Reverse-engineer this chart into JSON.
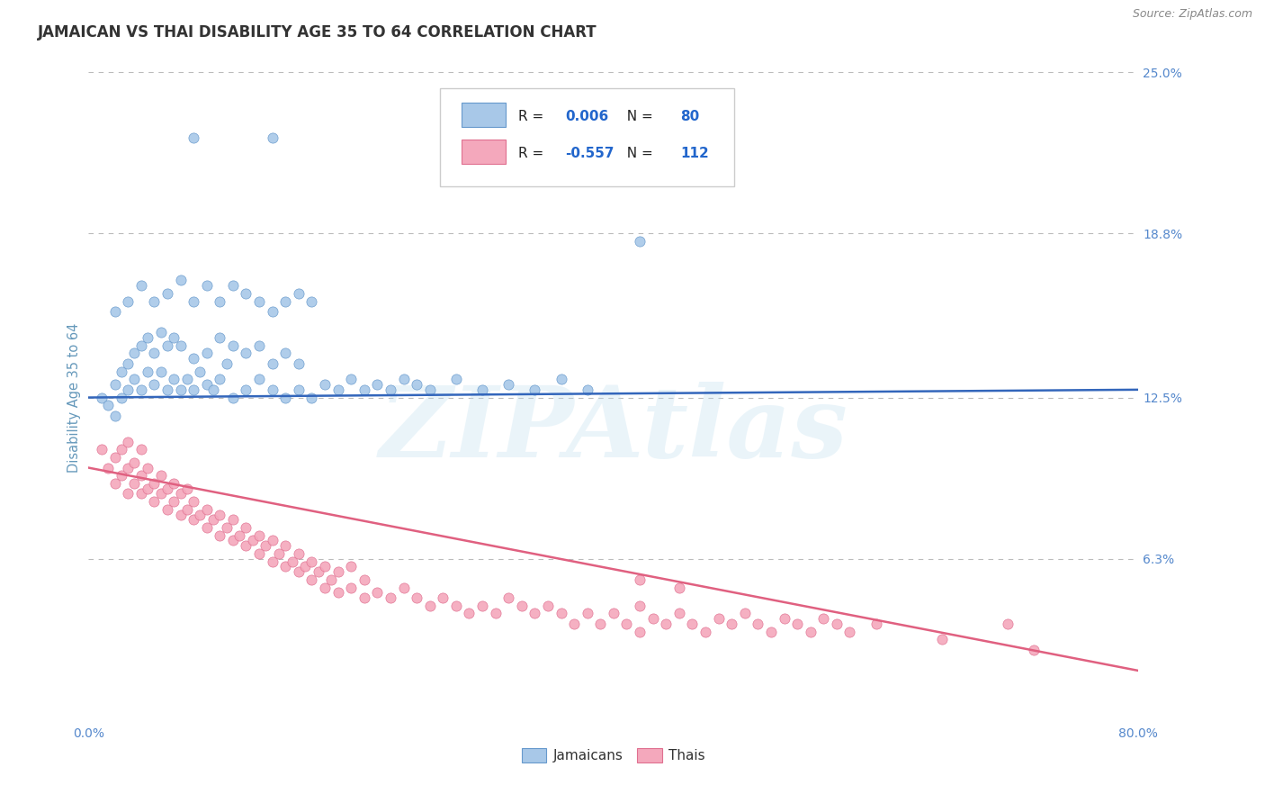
{
  "title": "JAMAICAN VS THAI DISABILITY AGE 35 TO 64 CORRELATION CHART",
  "source_text": "Source: ZipAtlas.com",
  "ylabel": "Disability Age 35 to 64",
  "xlim": [
    0.0,
    0.8
  ],
  "ylim": [
    0.0,
    0.25
  ],
  "ytick_labels": [
    "6.3%",
    "12.5%",
    "18.8%",
    "25.0%"
  ],
  "yticks": [
    0.063,
    0.125,
    0.188,
    0.25
  ],
  "jamaican_color": "#a8c8e8",
  "thai_color": "#f4a8bc",
  "jamaican_edge_color": "#6699cc",
  "thai_edge_color": "#e07090",
  "jamaican_line_color": "#3366bb",
  "thai_line_color": "#e06080",
  "R_jamaican": 0.006,
  "N_jamaican": 80,
  "R_thai": -0.557,
  "N_thai": 112,
  "legend_label_jamaican": "Jamaicans",
  "legend_label_thai": "Thais",
  "watermark": "ZIPAtlas",
  "background_color": "#ffffff",
  "grid_color": "#bbbbbb",
  "title_color": "#333333",
  "axis_tick_color": "#5588cc",
  "axis_label_color": "#6699bb",
  "jamaican_points": [
    [
      0.01,
      0.125
    ],
    [
      0.015,
      0.122
    ],
    [
      0.02,
      0.118
    ],
    [
      0.02,
      0.13
    ],
    [
      0.025,
      0.125
    ],
    [
      0.025,
      0.135
    ],
    [
      0.03,
      0.128
    ],
    [
      0.03,
      0.138
    ],
    [
      0.035,
      0.132
    ],
    [
      0.035,
      0.142
    ],
    [
      0.04,
      0.128
    ],
    [
      0.04,
      0.145
    ],
    [
      0.045,
      0.135
    ],
    [
      0.045,
      0.148
    ],
    [
      0.05,
      0.13
    ],
    [
      0.05,
      0.142
    ],
    [
      0.055,
      0.135
    ],
    [
      0.055,
      0.15
    ],
    [
      0.06,
      0.128
    ],
    [
      0.06,
      0.145
    ],
    [
      0.065,
      0.132
    ],
    [
      0.065,
      0.148
    ],
    [
      0.07,
      0.128
    ],
    [
      0.07,
      0.145
    ],
    [
      0.075,
      0.132
    ],
    [
      0.08,
      0.128
    ],
    [
      0.08,
      0.14
    ],
    [
      0.085,
      0.135
    ],
    [
      0.09,
      0.13
    ],
    [
      0.09,
      0.142
    ],
    [
      0.095,
      0.128
    ],
    [
      0.1,
      0.132
    ],
    [
      0.1,
      0.148
    ],
    [
      0.105,
      0.138
    ],
    [
      0.11,
      0.125
    ],
    [
      0.11,
      0.145
    ],
    [
      0.12,
      0.128
    ],
    [
      0.12,
      0.142
    ],
    [
      0.13,
      0.132
    ],
    [
      0.13,
      0.145
    ],
    [
      0.14,
      0.128
    ],
    [
      0.14,
      0.138
    ],
    [
      0.15,
      0.125
    ],
    [
      0.15,
      0.142
    ],
    [
      0.16,
      0.128
    ],
    [
      0.16,
      0.138
    ],
    [
      0.17,
      0.125
    ],
    [
      0.18,
      0.13
    ],
    [
      0.19,
      0.128
    ],
    [
      0.2,
      0.132
    ],
    [
      0.21,
      0.128
    ],
    [
      0.22,
      0.13
    ],
    [
      0.23,
      0.128
    ],
    [
      0.24,
      0.132
    ],
    [
      0.25,
      0.13
    ],
    [
      0.26,
      0.128
    ],
    [
      0.28,
      0.132
    ],
    [
      0.3,
      0.128
    ],
    [
      0.32,
      0.13
    ],
    [
      0.34,
      0.128
    ],
    [
      0.36,
      0.132
    ],
    [
      0.38,
      0.128
    ],
    [
      0.02,
      0.158
    ],
    [
      0.03,
      0.162
    ],
    [
      0.04,
      0.168
    ],
    [
      0.05,
      0.162
    ],
    [
      0.06,
      0.165
    ],
    [
      0.07,
      0.17
    ],
    [
      0.08,
      0.162
    ],
    [
      0.09,
      0.168
    ],
    [
      0.1,
      0.162
    ],
    [
      0.11,
      0.168
    ],
    [
      0.12,
      0.165
    ],
    [
      0.13,
      0.162
    ],
    [
      0.14,
      0.158
    ],
    [
      0.15,
      0.162
    ],
    [
      0.16,
      0.165
    ],
    [
      0.17,
      0.162
    ],
    [
      0.42,
      0.185
    ],
    [
      0.08,
      0.225
    ],
    [
      0.14,
      0.225
    ]
  ],
  "thai_points": [
    [
      0.01,
      0.105
    ],
    [
      0.015,
      0.098
    ],
    [
      0.02,
      0.092
    ],
    [
      0.02,
      0.102
    ],
    [
      0.025,
      0.095
    ],
    [
      0.025,
      0.105
    ],
    [
      0.03,
      0.088
    ],
    [
      0.03,
      0.098
    ],
    [
      0.03,
      0.108
    ],
    [
      0.035,
      0.092
    ],
    [
      0.035,
      0.1
    ],
    [
      0.04,
      0.088
    ],
    [
      0.04,
      0.095
    ],
    [
      0.04,
      0.105
    ],
    [
      0.045,
      0.09
    ],
    [
      0.045,
      0.098
    ],
    [
      0.05,
      0.085
    ],
    [
      0.05,
      0.092
    ],
    [
      0.055,
      0.088
    ],
    [
      0.055,
      0.095
    ],
    [
      0.06,
      0.082
    ],
    [
      0.06,
      0.09
    ],
    [
      0.065,
      0.085
    ],
    [
      0.065,
      0.092
    ],
    [
      0.07,
      0.08
    ],
    [
      0.07,
      0.088
    ],
    [
      0.075,
      0.082
    ],
    [
      0.075,
      0.09
    ],
    [
      0.08,
      0.078
    ],
    [
      0.08,
      0.085
    ],
    [
      0.085,
      0.08
    ],
    [
      0.09,
      0.075
    ],
    [
      0.09,
      0.082
    ],
    [
      0.095,
      0.078
    ],
    [
      0.1,
      0.072
    ],
    [
      0.1,
      0.08
    ],
    [
      0.105,
      0.075
    ],
    [
      0.11,
      0.07
    ],
    [
      0.11,
      0.078
    ],
    [
      0.115,
      0.072
    ],
    [
      0.12,
      0.068
    ],
    [
      0.12,
      0.075
    ],
    [
      0.125,
      0.07
    ],
    [
      0.13,
      0.065
    ],
    [
      0.13,
      0.072
    ],
    [
      0.135,
      0.068
    ],
    [
      0.14,
      0.062
    ],
    [
      0.14,
      0.07
    ],
    [
      0.145,
      0.065
    ],
    [
      0.15,
      0.06
    ],
    [
      0.15,
      0.068
    ],
    [
      0.155,
      0.062
    ],
    [
      0.16,
      0.058
    ],
    [
      0.16,
      0.065
    ],
    [
      0.165,
      0.06
    ],
    [
      0.17,
      0.055
    ],
    [
      0.17,
      0.062
    ],
    [
      0.175,
      0.058
    ],
    [
      0.18,
      0.052
    ],
    [
      0.18,
      0.06
    ],
    [
      0.185,
      0.055
    ],
    [
      0.19,
      0.05
    ],
    [
      0.19,
      0.058
    ],
    [
      0.2,
      0.052
    ],
    [
      0.2,
      0.06
    ],
    [
      0.21,
      0.048
    ],
    [
      0.21,
      0.055
    ],
    [
      0.22,
      0.05
    ],
    [
      0.23,
      0.048
    ],
    [
      0.24,
      0.052
    ],
    [
      0.25,
      0.048
    ],
    [
      0.26,
      0.045
    ],
    [
      0.27,
      0.048
    ],
    [
      0.28,
      0.045
    ],
    [
      0.29,
      0.042
    ],
    [
      0.3,
      0.045
    ],
    [
      0.31,
      0.042
    ],
    [
      0.32,
      0.048
    ],
    [
      0.33,
      0.045
    ],
    [
      0.34,
      0.042
    ],
    [
      0.35,
      0.045
    ],
    [
      0.36,
      0.042
    ],
    [
      0.37,
      0.038
    ],
    [
      0.38,
      0.042
    ],
    [
      0.39,
      0.038
    ],
    [
      0.4,
      0.042
    ],
    [
      0.41,
      0.038
    ],
    [
      0.42,
      0.045
    ],
    [
      0.42,
      0.035
    ],
    [
      0.43,
      0.04
    ],
    [
      0.44,
      0.038
    ],
    [
      0.45,
      0.042
    ],
    [
      0.46,
      0.038
    ],
    [
      0.47,
      0.035
    ],
    [
      0.48,
      0.04
    ],
    [
      0.49,
      0.038
    ],
    [
      0.5,
      0.042
    ],
    [
      0.51,
      0.038
    ],
    [
      0.52,
      0.035
    ],
    [
      0.53,
      0.04
    ],
    [
      0.54,
      0.038
    ],
    [
      0.55,
      0.035
    ],
    [
      0.56,
      0.04
    ],
    [
      0.57,
      0.038
    ],
    [
      0.58,
      0.035
    ],
    [
      0.42,
      0.055
    ],
    [
      0.45,
      0.052
    ],
    [
      0.6,
      0.038
    ],
    [
      0.65,
      0.032
    ],
    [
      0.7,
      0.038
    ],
    [
      0.72,
      0.028
    ]
  ],
  "jamaican_line": {
    "x0": 0.0,
    "y0": 0.125,
    "x1": 0.8,
    "y1": 0.128
  },
  "thai_line": {
    "x0": 0.0,
    "y0": 0.098,
    "x1": 0.8,
    "y1": 0.02
  }
}
